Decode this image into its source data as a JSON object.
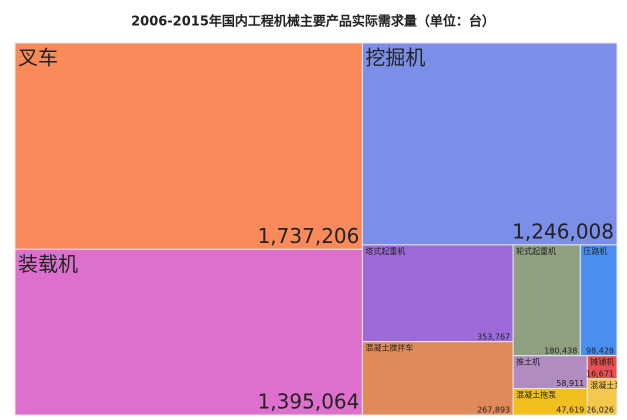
{
  "chart_data": {
    "type": "treemap",
    "title": "2006-2015年国内工程机械主要产品实际需求量（单位：台）",
    "categories": [
      "叉车",
      "装载机",
      "挖掘机",
      "塔式起重机",
      "混凝土搅拌车",
      "轮式起重机",
      "压路机",
      "推土机",
      "混凝土拖泵",
      "摊铺机",
      "混凝土泵车"
    ],
    "values": [
      1737206,
      1395064,
      1246008,
      353767,
      267893,
      180438,
      98428,
      58911,
      47619,
      16671,
      26026
    ],
    "value_labels": [
      "1,737,206",
      "1,395,064",
      "1,246,008",
      "353,767",
      "267,893",
      "180,438",
      "98,428",
      "58,911",
      "47,619",
      "16,671",
      "26,026"
    ],
    "colors": [
      "#fb8a5a",
      "#dd70cc",
      "#7b8ee8",
      "#9e6ad9",
      "#e08a5a",
      "#8f9f82",
      "#4a8ff0",
      "#b08cc0",
      "#f2bf1e",
      "#e84f50",
      "#f3c84c"
    ]
  }
}
